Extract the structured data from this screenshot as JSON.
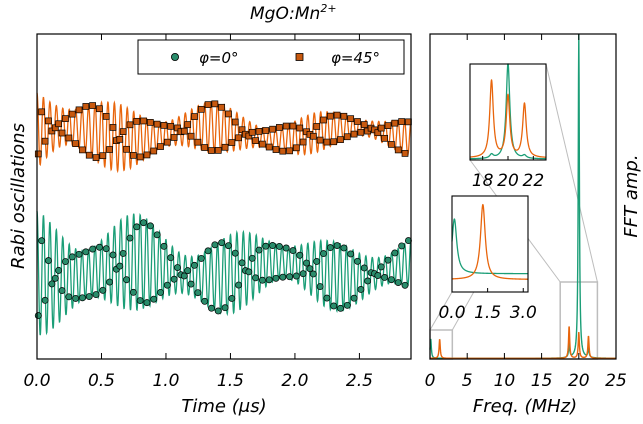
{
  "figure": {
    "title": "MgO:Mn",
    "title_superscript": "2+"
  },
  "colors": {
    "green": "#1b9e77",
    "green_marker": "#2a8c6b",
    "orange": "#e8650c",
    "orange_marker": "#c8590f",
    "marker_edge": "#000000",
    "zoom_box": "#bdbdbd"
  },
  "chart_data": [
    {
      "type": "line",
      "title": "MgO:Mn2+",
      "xlabel": "Time (μs)",
      "ylabel": "Rabi oscillations",
      "xlim": [
        0,
        2.9
      ],
      "xticks": [
        "0.0",
        "0.5",
        "1.0",
        "1.5",
        "2.0",
        "2.5"
      ],
      "legend": {
        "placement": "top-right"
      },
      "series": [
        {
          "name": "φ=0°",
          "marker": "circle",
          "color": "#1b9e77",
          "offset": 0.0,
          "oscillation_freq_MHz": 20.0,
          "beat_freq_MHz": 1.3,
          "decay_time_us": 1.6,
          "start_amplitude": 1.0,
          "end_amplitude": 0.42
        },
        {
          "name": "φ=45°",
          "marker": "square",
          "color": "#e8650c",
          "offset": 1.0,
          "oscillation_freq_MHz": 20.0,
          "beat_freq_MHz": 1.3,
          "decay_time_us": 1.3,
          "start_amplitude": 1.0,
          "end_amplitude": 0.3
        }
      ]
    },
    {
      "type": "line",
      "xlabel": "Freq. (MHz)",
      "ylabel": "FFT amp.",
      "xlim": [
        0,
        25
      ],
      "xticks": [
        "0",
        "5",
        "10",
        "15",
        "20",
        "25"
      ],
      "series": [
        {
          "color": "#1b9e77",
          "peaks_MHz": [
            0.1,
            20.0
          ],
          "peak_heights": [
            0.06,
            1.0
          ],
          "sidebands_MHz": [
            18.7,
            21.3
          ],
          "sideband_heights": [
            0.04,
            0.03
          ]
        },
        {
          "color": "#e8650c",
          "peaks_MHz": [
            1.3,
            18.7,
            20.0,
            21.3
          ],
          "peak_heights": [
            0.06,
            0.1,
            0.08,
            0.07
          ]
        }
      ],
      "insets": [
        {
          "xlim": [
            17,
            23
          ],
          "xticks": [
            "18",
            "20",
            "22"
          ],
          "zoom_region_MHz": [
            17.5,
            22.5
          ]
        },
        {
          "xlim": [
            0,
            3.2
          ],
          "xticks": [
            "0.0",
            "1.5",
            "3.0"
          ],
          "zoom_region_MHz": [
            0,
            3
          ]
        }
      ]
    }
  ]
}
